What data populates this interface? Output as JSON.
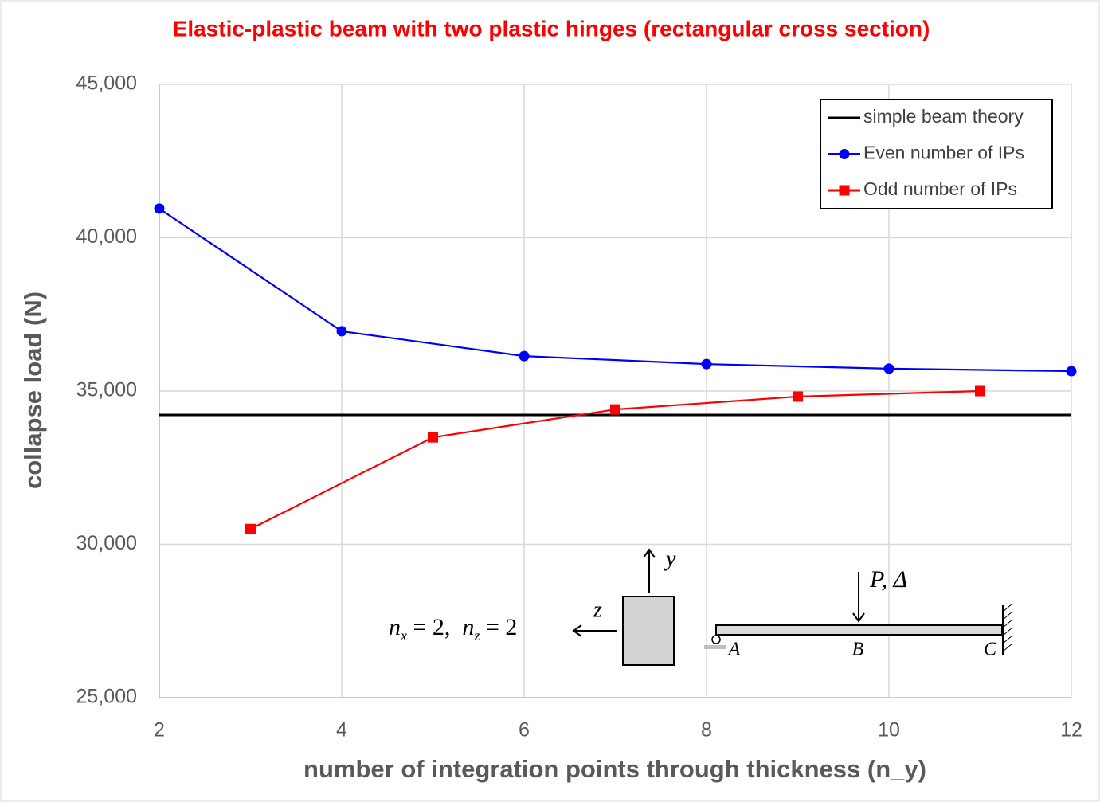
{
  "chart_data": {
    "type": "line",
    "title": "Elastic-plastic beam with two plastic hinges (rectangular cross section)",
    "xlabel": "number of integration points through thickness (n_y)",
    "ylabel": "collapse load (N)",
    "xlim": [
      2,
      12
    ],
    "xticks": [
      2,
      4,
      6,
      8,
      10,
      12
    ],
    "ylim": [
      25000,
      45000
    ],
    "yticks": [
      {
        "value": 25000,
        "label": "25,000"
      },
      {
        "value": 30000,
        "label": "30,000"
      },
      {
        "value": 35000,
        "label": "35,000"
      },
      {
        "value": 40000,
        "label": "40,000"
      },
      {
        "value": 45000,
        "label": "45,000"
      }
    ],
    "grid": true,
    "legend": "upper right",
    "series": [
      {
        "name": "simple beam theory",
        "color": "#000000",
        "marker": "none",
        "x": [
          2,
          12
        ],
        "values": [
          34220,
          34220
        ]
      },
      {
        "name": "Even number of IPs",
        "color": "#0000ff",
        "marker": "circle",
        "x": [
          2,
          4,
          6,
          8,
          10,
          12
        ],
        "values": [
          40950,
          36950,
          36140,
          35880,
          35730,
          35650
        ]
      },
      {
        "name": "Odd number of IPs",
        "color": "#ff0000",
        "marker": "square",
        "x": [
          3,
          5,
          7,
          9,
          11
        ],
        "values": [
          30500,
          33490,
          34400,
          34820,
          35000
        ]
      }
    ],
    "annotations": {
      "section_label": [
        "n",
        "x",
        " = 2,  ",
        "n",
        "z",
        " = 2"
      ],
      "y_axis": "y",
      "z_axis": "z",
      "load": "P, Δ",
      "points": [
        "A",
        "B",
        "C"
      ]
    }
  }
}
